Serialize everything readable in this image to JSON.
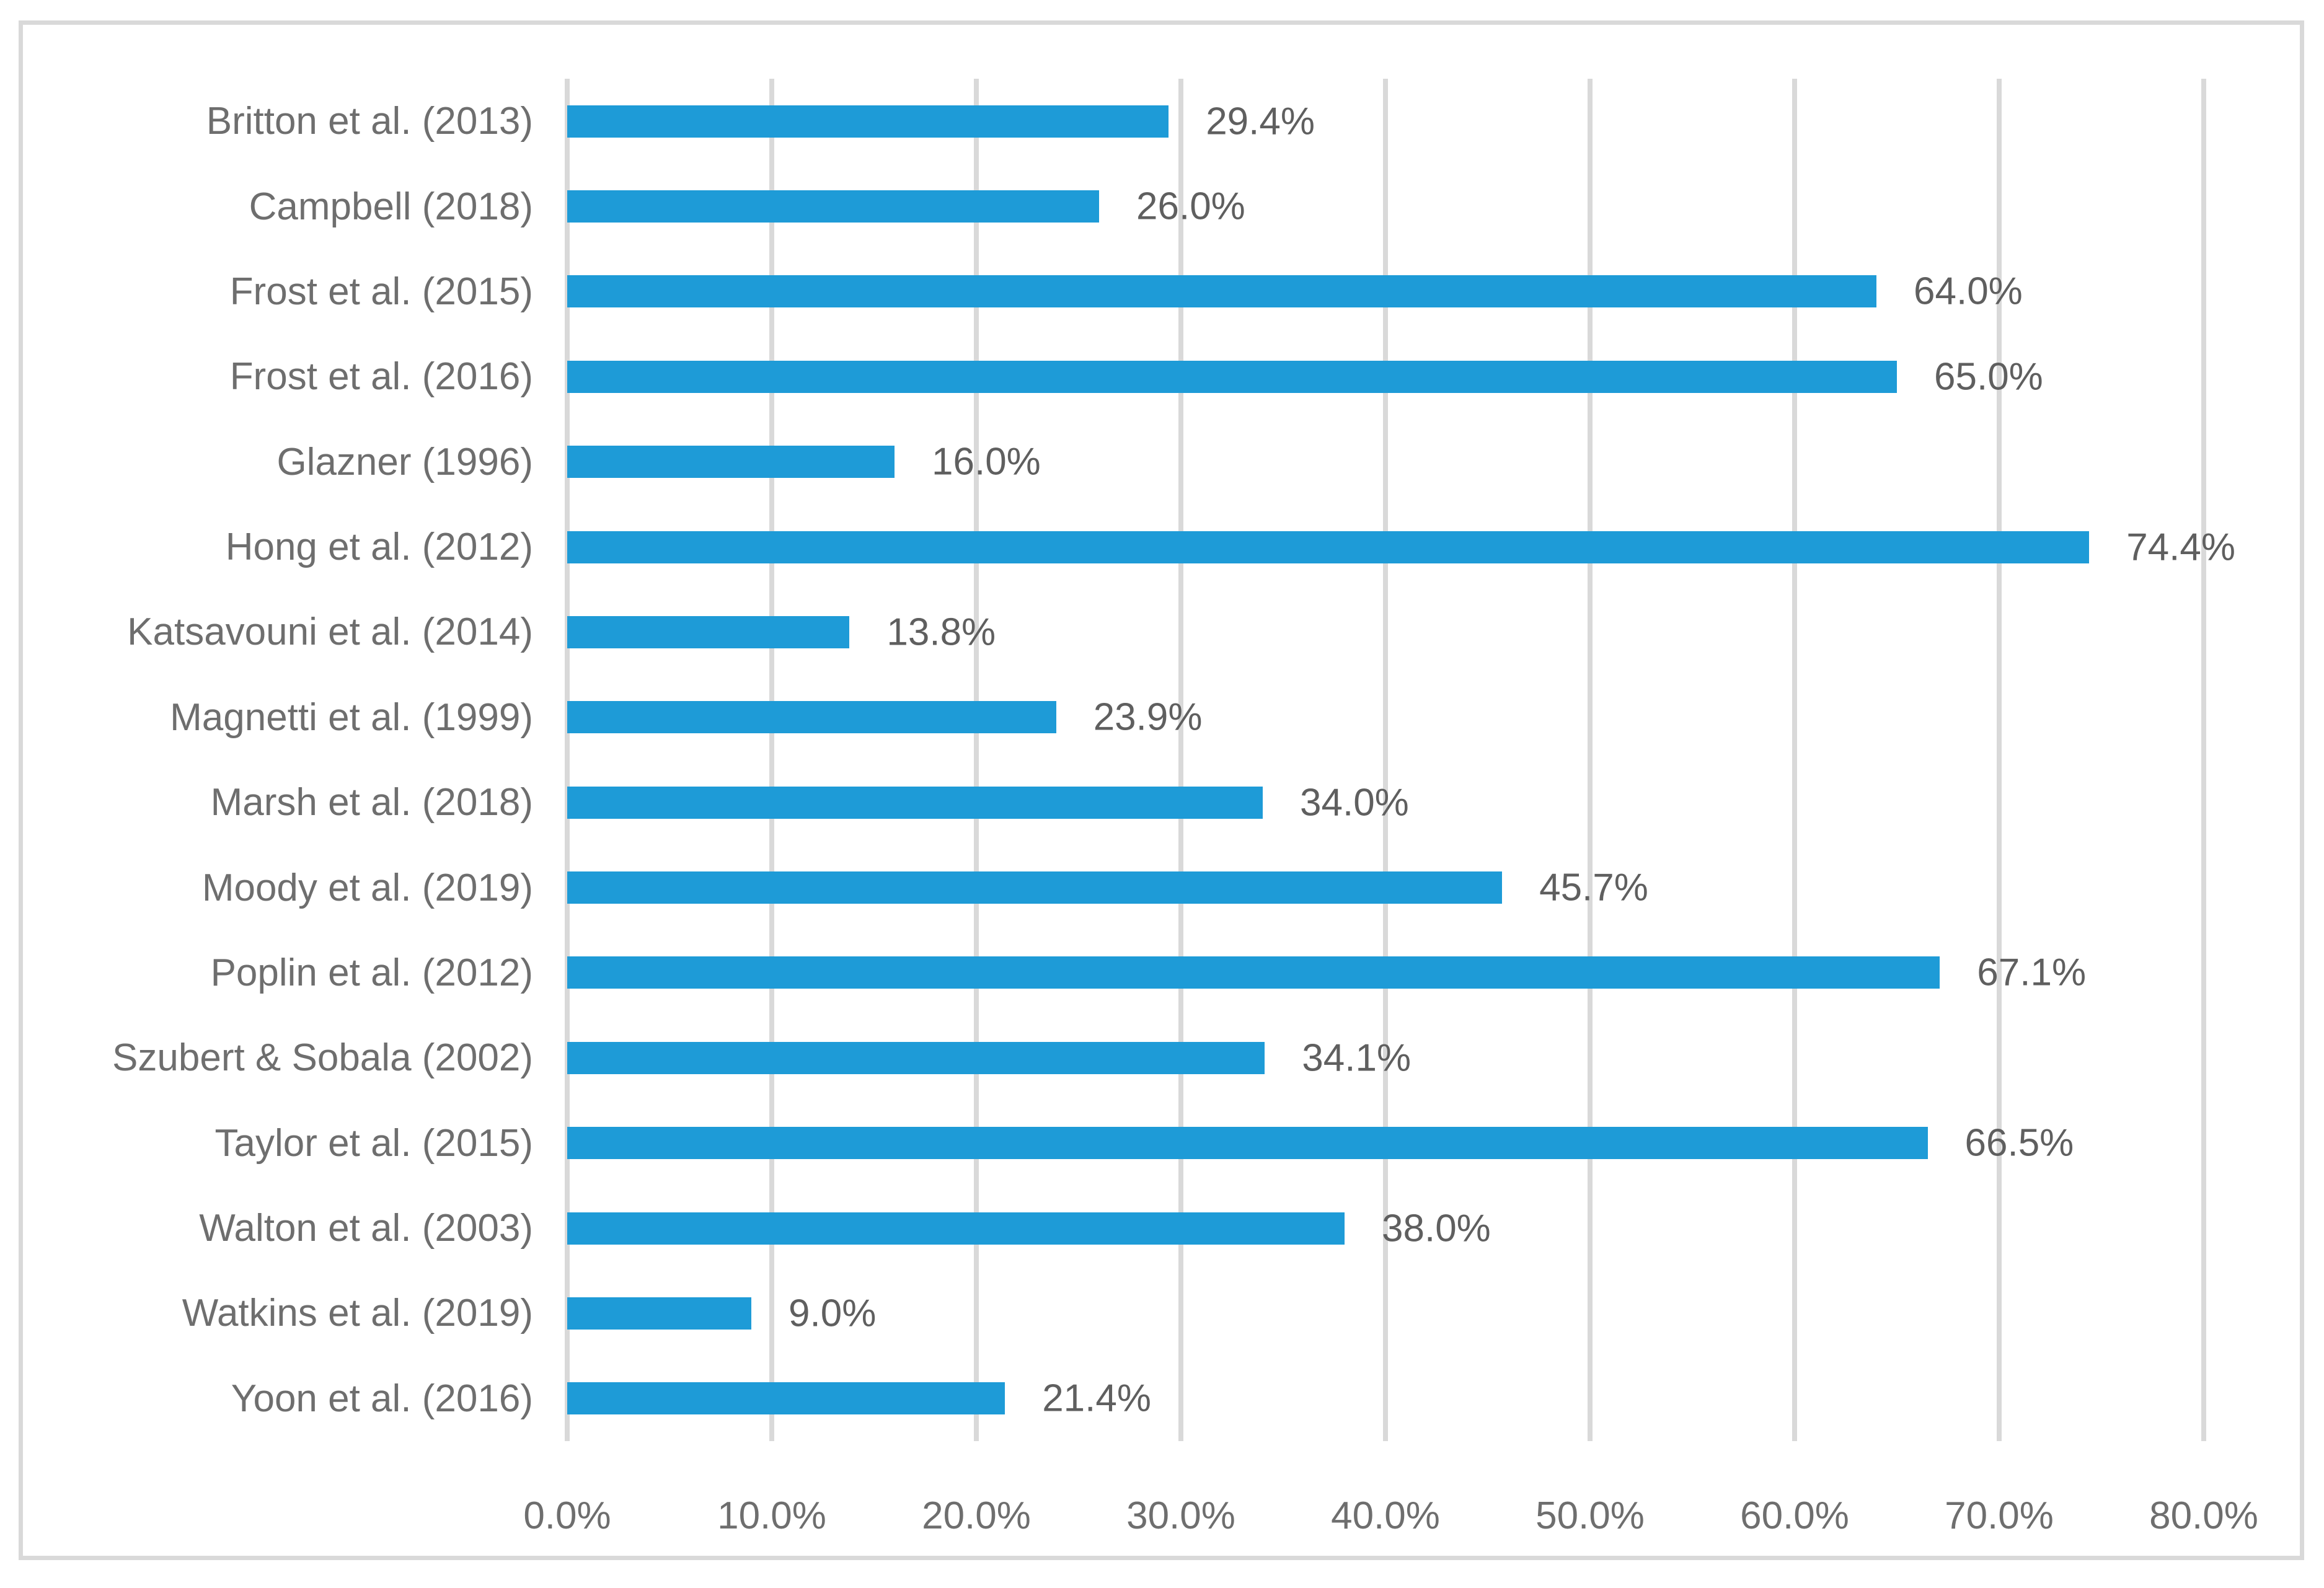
{
  "chart_data": {
    "type": "bar",
    "orientation": "horizontal",
    "title": "",
    "categories": [
      "Britton et al. (2013)",
      "Campbell (2018)",
      "Frost et al. (2015)",
      "Frost et al. (2016)",
      "Glazner (1996)",
      "Hong et al. (2012)",
      "Katsavouni et al. (2014)",
      "Magnetti et al. (1999)",
      "Marsh et al. (2018)",
      "Moody et al. (2019)",
      "Poplin et al. (2012)",
      "Szubert & Sobala (2002)",
      "Taylor et al. (2015)",
      "Walton et al. (2003)",
      "Watkins et al. (2019)",
      "Yoon et al. (2016)"
    ],
    "values": [
      29.4,
      26.0,
      64.0,
      65.0,
      16.0,
      74.4,
      13.8,
      23.9,
      34.0,
      45.7,
      67.1,
      34.1,
      66.5,
      38.0,
      9.0,
      21.4
    ],
    "value_labels": [
      "29.4%",
      "26.0%",
      "64.0%",
      "65.0%",
      "16.0%",
      "74.4%",
      "13.8%",
      "23.9%",
      "34.0%",
      "45.7%",
      "67.1%",
      "34.1%",
      "66.5%",
      "38.0%",
      "9.0%",
      "21.4%"
    ],
    "x_tick_labels": [
      "0.0%",
      "10.0%",
      "20.0%",
      "30.0%",
      "40.0%",
      "50.0%",
      "60.0%",
      "70.0%",
      "80.0%"
    ],
    "xlim": [
      0,
      80
    ],
    "x_tick_step": 10,
    "grid": true,
    "legend": null,
    "xlabel": "",
    "ylabel": "",
    "colors": {
      "bar": "#1E9BD7",
      "gridline": "#D9D9D9",
      "frame_border": "#D9D9D9",
      "category_text": "#6E6E6E",
      "value_text": "#5F5F5F"
    }
  }
}
